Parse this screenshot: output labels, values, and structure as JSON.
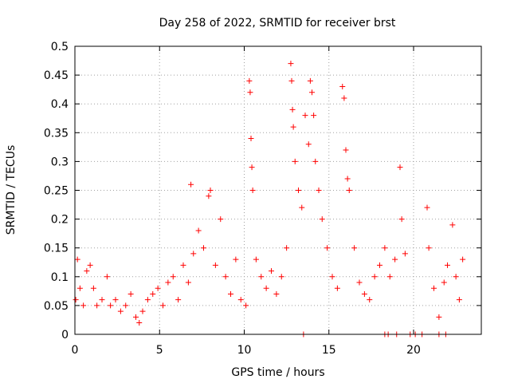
{
  "chart_data": {
    "type": "scatter",
    "title": "Day 258 of 2022, SRMTID for receiver brst",
    "xlabel": "GPS time / hours",
    "ylabel": "SRMTID / TECUs",
    "xlim": [
      0,
      24
    ],
    "ylim": [
      0,
      0.5
    ],
    "x_ticks": [
      "0",
      "5",
      "10",
      "15",
      "20"
    ],
    "y_ticks": [
      "0",
      "0.05",
      "0.1",
      "0.15",
      "0.2",
      "0.25",
      "0.3",
      "0.35",
      "0.4",
      "0.45",
      "0.5"
    ],
    "grid": true,
    "marker": "+",
    "color": "#ff0000",
    "series": [
      {
        "points": [
          [
            0.05,
            0.06
          ],
          [
            0.15,
            0.13
          ],
          [
            0.3,
            0.08
          ],
          [
            0.5,
            0.05
          ],
          [
            0.7,
            0.11
          ],
          [
            0.9,
            0.12
          ],
          [
            1.1,
            0.08
          ],
          [
            1.3,
            0.05
          ],
          [
            1.6,
            0.06
          ],
          [
            1.9,
            0.1
          ],
          [
            2.1,
            0.05
          ],
          [
            2.4,
            0.06
          ],
          [
            2.7,
            0.04
          ],
          [
            3.0,
            0.05
          ],
          [
            3.3,
            0.07
          ],
          [
            3.6,
            0.03
          ],
          [
            3.8,
            0.02
          ],
          [
            4.0,
            0.04
          ],
          [
            4.3,
            0.06
          ],
          [
            4.6,
            0.07
          ],
          [
            4.9,
            0.08
          ],
          [
            5.2,
            0.05
          ],
          [
            5.5,
            0.09
          ],
          [
            5.8,
            0.1
          ],
          [
            6.1,
            0.06
          ],
          [
            6.4,
            0.12
          ],
          [
            6.7,
            0.09
          ],
          [
            6.85,
            0.26
          ],
          [
            7.0,
            0.14
          ],
          [
            7.3,
            0.18
          ],
          [
            7.6,
            0.15
          ],
          [
            7.9,
            0.24
          ],
          [
            8.0,
            0.25
          ],
          [
            8.3,
            0.12
          ],
          [
            8.6,
            0.2
          ],
          [
            8.9,
            0.1
          ],
          [
            9.2,
            0.07
          ],
          [
            9.5,
            0.13
          ],
          [
            9.8,
            0.06
          ],
          [
            10.1,
            0.05
          ],
          [
            10.3,
            0.44
          ],
          [
            10.35,
            0.42
          ],
          [
            10.4,
            0.34
          ],
          [
            10.45,
            0.29
          ],
          [
            10.5,
            0.25
          ],
          [
            10.7,
            0.13
          ],
          [
            11.0,
            0.1
          ],
          [
            11.3,
            0.08
          ],
          [
            11.6,
            0.11
          ],
          [
            11.9,
            0.07
          ],
          [
            12.2,
            0.1
          ],
          [
            12.5,
            0.15
          ],
          [
            12.75,
            0.47
          ],
          [
            12.8,
            0.44
          ],
          [
            12.85,
            0.39
          ],
          [
            12.9,
            0.36
          ],
          [
            13.0,
            0.3
          ],
          [
            13.2,
            0.25
          ],
          [
            13.4,
            0.22
          ],
          [
            13.6,
            0.38
          ],
          [
            13.8,
            0.33
          ],
          [
            13.9,
            0.44
          ],
          [
            14.0,
            0.42
          ],
          [
            14.1,
            0.38
          ],
          [
            14.2,
            0.3
          ],
          [
            14.4,
            0.25
          ],
          [
            14.6,
            0.2
          ],
          [
            14.9,
            0.15
          ],
          [
            15.2,
            0.1
          ],
          [
            15.5,
            0.08
          ],
          [
            15.8,
            0.43
          ],
          [
            15.9,
            0.41
          ],
          [
            16.0,
            0.32
          ],
          [
            16.1,
            0.27
          ],
          [
            16.2,
            0.25
          ],
          [
            16.5,
            0.15
          ],
          [
            16.8,
            0.09
          ],
          [
            17.1,
            0.07
          ],
          [
            17.4,
            0.06
          ],
          [
            17.7,
            0.1
          ],
          [
            18.0,
            0.12
          ],
          [
            18.3,
            0.15
          ],
          [
            18.6,
            0.1
          ],
          [
            18.9,
            0.13
          ],
          [
            19.2,
            0.29
          ],
          [
            19.3,
            0.2
          ],
          [
            19.5,
            0.14
          ],
          [
            19.8,
            0.0
          ],
          [
            20.1,
            0.0
          ],
          [
            20.5,
            0.0
          ],
          [
            20.8,
            0.22
          ],
          [
            20.9,
            0.15
          ],
          [
            21.2,
            0.08
          ],
          [
            21.5,
            0.03
          ],
          [
            21.8,
            0.09
          ],
          [
            22.0,
            0.12
          ],
          [
            22.3,
            0.19
          ],
          [
            22.5,
            0.1
          ],
          [
            22.7,
            0.06
          ],
          [
            22.9,
            0.13
          ],
          [
            13.5,
            0.0
          ],
          [
            18.3,
            0.0
          ],
          [
            18.5,
            0.0
          ],
          [
            19.0,
            0.0
          ],
          [
            21.5,
            0.0
          ],
          [
            21.9,
            0.0
          ]
        ]
      }
    ]
  }
}
